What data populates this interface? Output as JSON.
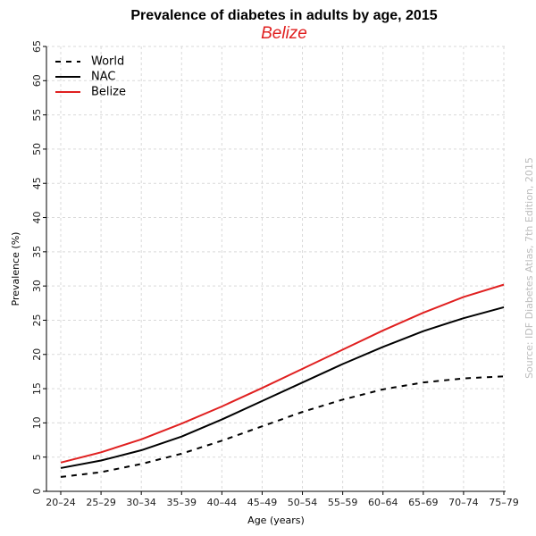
{
  "chart_data": {
    "type": "line",
    "title": "Prevalence of diabetes in adults by age, 2015",
    "subtitle": "Belize",
    "subtitle_color": "#e02020",
    "xlabel": "Age (years)",
    "ylabel": "Prevalence (%)",
    "categories": [
      "20–24",
      "25–29",
      "30–34",
      "35–39",
      "40–44",
      "45–49",
      "50–54",
      "55–59",
      "60–64",
      "65–69",
      "70–74",
      "75–79"
    ],
    "ylim": [
      0,
      65
    ],
    "yticks": [
      0,
      5,
      10,
      15,
      20,
      25,
      30,
      35,
      40,
      45,
      50,
      55,
      60,
      65
    ],
    "grid": true,
    "legend_position": "top-left",
    "series": [
      {
        "name": "World",
        "color": "#000000",
        "dash": "dashed",
        "values": [
          2.1,
          2.8,
          4.0,
          5.5,
          7.4,
          9.5,
          11.6,
          13.4,
          14.9,
          15.9,
          16.5,
          16.8
        ]
      },
      {
        "name": "NAC",
        "color": "#000000",
        "dash": "solid",
        "values": [
          3.4,
          4.5,
          6.0,
          8.0,
          10.5,
          13.2,
          15.9,
          18.6,
          21.1,
          23.4,
          25.3,
          26.9
        ]
      },
      {
        "name": "Belize",
        "color": "#e02020",
        "dash": "solid",
        "values": [
          4.2,
          5.7,
          7.6,
          9.9,
          12.4,
          15.1,
          17.9,
          20.7,
          23.5,
          26.1,
          28.4,
          30.2
        ]
      }
    ],
    "source": "Source: IDF Diabetes Atlas, 7th Edition, 2015"
  }
}
